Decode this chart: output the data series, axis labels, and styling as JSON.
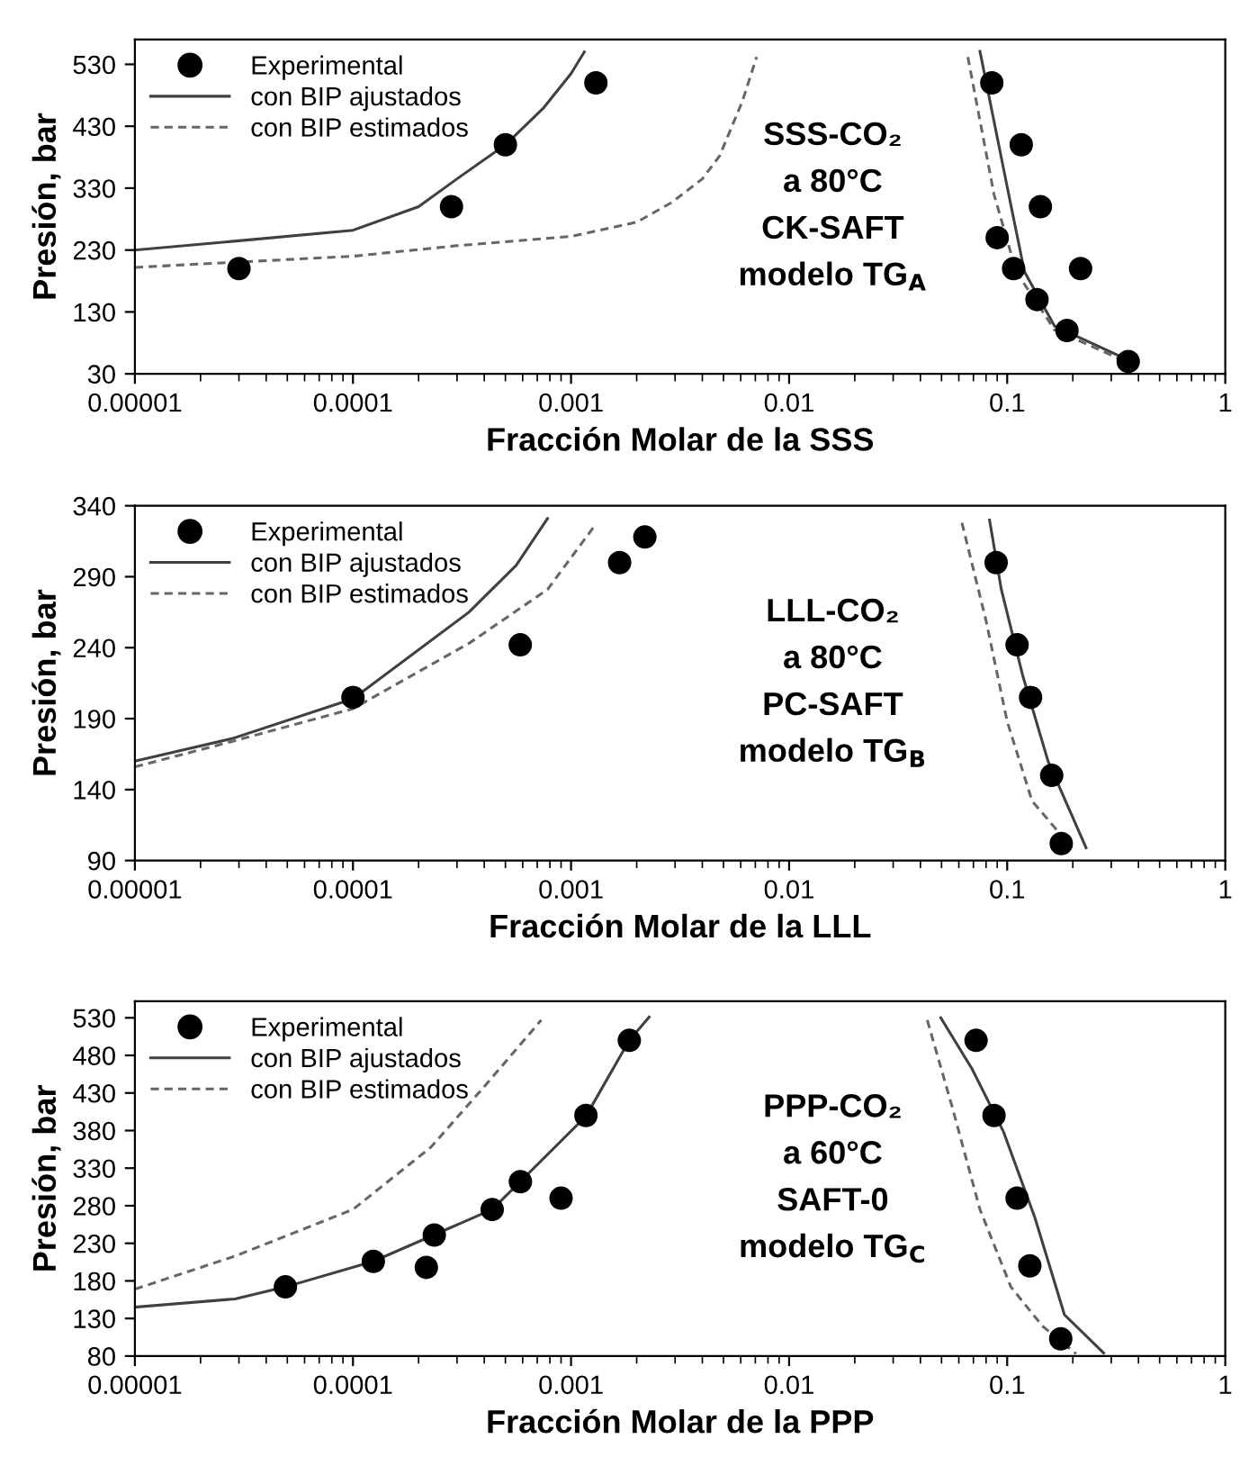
{
  "chart_data": [
    {
      "type": "scatter",
      "xlabel": "Fracción Molar de la SSS",
      "ylabel": "Presión, bar",
      "log": "x",
      "legend": "top left",
      "grid": false,
      "xlim": [
        1e-05,
        1
      ],
      "xticks": [
        {
          "value": 1e-05,
          "label": "0.00001"
        },
        {
          "value": 0.0001,
          "label": "0.0001"
        },
        {
          "value": 0.001,
          "label": "0.001"
        },
        {
          "value": 0.01,
          "label": "0.01"
        },
        {
          "value": 0.1,
          "label": "0.1"
        },
        1
      ],
      "ylim": [
        30,
        570
      ],
      "yticks": [
        30,
        130,
        230,
        330,
        430,
        530
      ],
      "annotations": [
        "SSS-CO₂\na 80°C\nCK-SAFT\nmodelo TG$_{A}$"
      ],
      "series": [
        {
          "name": "Experimental",
          "marker": "circle",
          "color": "#000000",
          "x": [
            3e-05,
            0.000283,
            0.0005,
            0.0013,
            0.085,
            0.116,
            0.142,
            0.09,
            0.107,
            0.217,
            0.137,
            0.188,
            0.359
          ],
          "values": [
            200,
            300,
            400,
            500,
            500,
            400,
            300,
            250,
            200,
            200,
            150,
            100,
            50
          ]
        },
        {
          "name": "con BIP ajustados",
          "type": "line",
          "line_style": "solid",
          "marker": "none",
          "color": "#404040",
          "x": [
            1e-05,
            3e-05,
            0.0001,
            0.0002,
            0.0003,
            0.0005,
            0.00075,
            0.001,
            0.00115,
            null,
            0.075,
            0.1,
            0.12,
            0.165,
            0.36
          ],
          "values": [
            230,
            245,
            262,
            300,
            345,
            400,
            460,
            515,
            550,
            null,
            551,
            332,
            195,
            107,
            52
          ]
        },
        {
          "name": "con BIP estimados",
          "type": "line",
          "line_style": "dashed",
          "marker": "none",
          "color": "#666666",
          "x": [
            1e-05,
            0.0001,
            0.0003,
            0.001,
            0.002,
            0.0029,
            0.004,
            0.0048,
            0.0061,
            0.0071,
            null,
            0.066,
            0.087,
            0.11,
            0.165,
            0.36
          ],
          "values": [
            202,
            220,
            237,
            252,
            275,
            307,
            345,
            382,
            470,
            542,
            null,
            542,
            320,
            195,
            101,
            48
          ]
        }
      ]
    },
    {
      "type": "scatter",
      "xlabel": "Fracción Molar de la LLL",
      "ylabel": "Presión, bar",
      "log": "x",
      "legend": "top left",
      "grid": false,
      "xlim": [
        1e-05,
        1
      ],
      "xticks": [
        {
          "value": 1e-05,
          "label": "0.00001"
        },
        {
          "value": 0.0001,
          "label": "0.0001"
        },
        {
          "value": 0.001,
          "label": "0.001"
        },
        {
          "value": 0.01,
          "label": "0.01"
        },
        {
          "value": 0.1,
          "label": "0.1"
        },
        1
      ],
      "ylim": [
        90,
        340
      ],
      "yticks": [
        90,
        140,
        190,
        240,
        290,
        340
      ],
      "annotations": [
        "LLL-CO₂\na 80°C\nPC-SAFT\nmodelo TG$_{B}$"
      ],
      "series": [
        {
          "name": "Experimental",
          "marker": "circle",
          "color": "#000000",
          "x": [
            0.0001,
            0.000585,
            0.00167,
            0.00218,
            0.089,
            0.111,
            0.128,
            0.16,
            0.177
          ],
          "values": [
            205,
            242,
            300,
            318,
            300,
            242,
            205,
            150,
            102
          ]
        },
        {
          "name": "con BIP ajustados",
          "type": "line",
          "line_style": "solid",
          "marker": "none",
          "color": "#404040",
          "x": [
            1e-05,
            2.8e-05,
            0.0001,
            0.00034,
            0.00056,
            0.00078,
            null,
            0.083,
            0.094,
            0.118,
            0.154,
            0.23
          ],
          "values": [
            160,
            176,
            204,
            265,
            298,
            331,
            null,
            330,
            281,
            220,
            160,
            99
          ]
        },
        {
          "name": "con BIP estimados",
          "type": "line",
          "line_style": "dashed",
          "marker": "none",
          "color": "#666666",
          "x": [
            1e-05,
            2.8e-05,
            0.0001,
            0.00034,
            0.00078,
            0.00127,
            null,
            0.062,
            0.08,
            0.1,
            0.13,
            0.198
          ],
          "values": [
            156,
            174,
            197,
            243,
            281,
            325,
            null,
            328,
            259,
            188,
            132,
            99
          ]
        }
      ]
    },
    {
      "type": "scatter",
      "xlabel": "Fracción Molar de la PPP",
      "ylabel": "Presión, bar",
      "log": "x",
      "legend": "top left",
      "grid": false,
      "xlim": [
        1e-05,
        1
      ],
      "xticks": [
        {
          "value": 1e-05,
          "label": "0.00001"
        },
        {
          "value": 0.0001,
          "label": "0.0001"
        },
        {
          "value": 0.001,
          "label": "0.001"
        },
        {
          "value": 0.01,
          "label": "0.01"
        },
        {
          "value": 0.1,
          "label": "0.1"
        },
        1
      ],
      "ylim": [
        80,
        552
      ],
      "yticks": [
        80,
        130,
        180,
        230,
        280,
        330,
        380,
        430,
        480,
        530
      ],
      "annotations": [
        "PPP-CO₂\na 60°C\nSAFT-0\nmodelo TG$_{C}$"
      ],
      "series": [
        {
          "name": "Experimental",
          "marker": "circle",
          "color": "#000000",
          "x": [
            4.9e-05,
            0.000124,
            0.000217,
            0.000236,
            0.000435,
            0.000586,
            0.0009,
            0.00117,
            0.00185,
            0.072,
            0.087,
            0.111,
            0.127,
            0.176
          ],
          "values": [
            172,
            206,
            198,
            241,
            275,
            312,
            290,
            400,
            500,
            500,
            400,
            290,
            200,
            103
          ]
        },
        {
          "name": "con BIP ajustados",
          "type": "line",
          "line_style": "solid",
          "marker": "none",
          "color": "#404040",
          "x": [
            1e-05,
            2.88e-05,
            4.9e-05,
            0.000124,
            0.000435,
            0.00117,
            0.00185,
            0.00228,
            null,
            0.0496,
            0.069,
            0.096,
            0.134,
            0.183,
            0.277
          ],
          "values": [
            145,
            156,
            172,
            206,
            275,
            399,
            500,
            531,
            null,
            530,
            462,
            379,
            264,
            135,
            84
          ]
        },
        {
          "name": "con BIP estimados",
          "type": "line",
          "line_style": "dashed",
          "marker": "none",
          "color": "#666666",
          "x": [
            1e-05,
            2.88e-05,
            0.0001,
            0.000228,
            0.000407,
            0.00073,
            null,
            0.043,
            0.056,
            0.075,
            0.104,
            0.145,
            0.207
          ],
          "values": [
            169,
            213,
            275,
            358,
            441,
            527,
            null,
            527,
            411,
            275,
            172,
            120,
            83
          ]
        }
      ]
    }
  ]
}
